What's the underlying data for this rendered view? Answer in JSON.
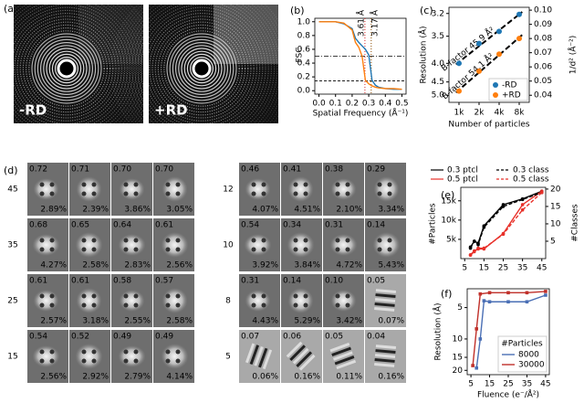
{
  "figure_a": {
    "panel_label": "(a)",
    "images": [
      "-RD",
      "+RD"
    ]
  },
  "figure_d": {
    "panel_label": "(d)",
    "grids": [
      [
        {
          "label": "45",
          "cells": [
            [
              "0.72",
              "2.89%"
            ],
            [
              "0.71",
              "2.39%"
            ],
            [
              "0.70",
              "3.86%"
            ],
            [
              "0.70",
              "3.05%"
            ]
          ]
        },
        {
          "label": "35",
          "cells": [
            [
              "0.68",
              "4.27%"
            ],
            [
              "0.65",
              "2.58%"
            ],
            [
              "0.64",
              "2.83%"
            ],
            [
              "0.61",
              "2.56%"
            ]
          ]
        },
        {
          "label": "25",
          "cells": [
            [
              "0.61",
              "2.57%"
            ],
            [
              "0.61",
              "3.18%"
            ],
            [
              "0.58",
              "2.55%"
            ],
            [
              "0.57",
              "2.58%"
            ]
          ]
        },
        {
          "label": "15",
          "cells": [
            [
              "0.54",
              "2.56%"
            ],
            [
              "0.52",
              "2.92%"
            ],
            [
              "0.49",
              "2.79%"
            ],
            [
              "0.49",
              "4.14%"
            ]
          ]
        }
      ],
      [
        {
          "label": "12",
          "cells": [
            [
              "0.46",
              "4.07%"
            ],
            [
              "0.41",
              "4.51%"
            ],
            [
              "0.38",
              "2.10%"
            ],
            [
              "0.29",
              "3.34%"
            ]
          ]
        },
        {
          "label": "10",
          "cells": [
            [
              "0.54",
              "3.92%"
            ],
            [
              "0.34",
              "3.84%"
            ],
            [
              "0.31",
              "4.72%"
            ],
            [
              "0.14",
              "5.43%"
            ]
          ]
        },
        {
          "label": "8",
          "cells": [
            [
              "0.31",
              "4.43%"
            ],
            [
              "0.14",
              "5.29%"
            ],
            [
              "0.10",
              "3.42%"
            ],
            [
              "0.05",
              "0.07%"
            ]
          ]
        },
        {
          "label": "5",
          "cells": [
            [
              "0.07",
              "0.06%"
            ],
            [
              "0.06",
              "0.16%"
            ],
            [
              "0.05",
              "0.11%"
            ],
            [
              "0.04",
              "0.16%"
            ]
          ]
        }
      ]
    ]
  },
  "chart_data": [
    {
      "type": "line",
      "panel_label": "(b)",
      "xlabel": "Spatial Frequency (Å⁻¹)",
      "ylabel": "FSC",
      "x": [
        0,
        0.05,
        0.1,
        0.15,
        0.2,
        0.22,
        0.24,
        0.26,
        0.28,
        0.3,
        0.32,
        0.34,
        0.36,
        0.4,
        0.45,
        0.5
      ],
      "series": [
        {
          "name": "-RD",
          "color": "#1f77b4",
          "values": [
            1,
            1,
            1,
            0.97,
            0.9,
            0.76,
            0.7,
            0.65,
            0.6,
            0.52,
            0.15,
            0.08,
            0.05,
            0.03,
            0.02,
            0.02
          ]
        },
        {
          "name": "+RD",
          "color": "#ff7f0e",
          "values": [
            1,
            1,
            1,
            0.98,
            0.88,
            0.7,
            0.63,
            0.5,
            0.15,
            0.1,
            0.07,
            0.05,
            0.04,
            0.03,
            0.03,
            0.02
          ]
        }
      ],
      "thresholds": [
        {
          "y": 0.5,
          "style": "dashdot"
        },
        {
          "y": 0.143,
          "style": "dashed"
        }
      ],
      "cutoffs": [
        {
          "x": 0.277,
          "label": "3.61 Å",
          "color": "#d62728"
        },
        {
          "x": 0.315,
          "label": "3.17 Å",
          "color": "#8c4a00"
        }
      ],
      "xlim": [
        -0.025,
        0.525
      ],
      "ylim": [
        -0.05,
        1.05
      ],
      "xticks": [
        {
          "value": 0,
          "label": "0.0"
        },
        0.1,
        0.2,
        0.3,
        0.4,
        0.5
      ],
      "yticks": [
        {
          "value": 0,
          "label": "0.0"
        },
        0.2,
        0.4,
        0.6,
        0.8,
        {
          "value": 1,
          "label": "1.0"
        }
      ]
    },
    {
      "type": "scatter",
      "panel_label": "(c)",
      "xlabel": "Number of particles",
      "ylabel": "Resolution (Å)",
      "y2label": "1/d² (Å⁻²)",
      "categories": [
        "1k",
        "2k",
        "4k",
        "8k"
      ],
      "series": [
        {
          "name": "-RD",
          "color": "#1f77b4",
          "axis": "y2",
          "values": [
            0.0625,
            0.0765,
            0.085,
            0.097
          ],
          "fit_label": "B-factor 45.9 Å²"
        },
        {
          "name": "+RD",
          "color": "#ff7f0e",
          "axis": "y2",
          "values": [
            0.043,
            0.057,
            0.069,
            0.08
          ],
          "fit_label": "B-factor 54.1 Å²"
        }
      ],
      "yscale": "inverse_square",
      "ylim": [
        5.345,
        3.131
      ],
      "yticks": [
        3.2,
        3.5,
        {
          "value": 4,
          "label": "4.0"
        },
        4.5,
        {
          "value": 5,
          "label": "5.0"
        }
      ],
      "y2lim": [
        0.035,
        0.102
      ],
      "y2ticks": [
        0.04,
        0.05,
        0.06,
        0.07,
        0.08,
        0.09,
        {
          "value": 0.1,
          "label": "0.10"
        }
      ],
      "legend": "lower right"
    },
    {
      "type": "line",
      "panel_label": "(e)",
      "ylabel": "#Particles",
      "y2label": "#Classes",
      "x": [
        8,
        10,
        12,
        15,
        25,
        35,
        45
      ],
      "series": [
        {
          "name": "0.3 ptcl",
          "color": "#000000",
          "values": [
            3000,
            4500,
            4000,
            8500,
            14000,
            15500,
            17500
          ]
        },
        {
          "name": "0.5 ptcl",
          "color": "#e8312a",
          "values": [
            1000,
            2000,
            2500,
            2500,
            6500,
            14000,
            17500
          ]
        },
        {
          "name": "0.3 class",
          "color": "#000000",
          "dash": true,
          "axis": "y2",
          "values": [
            3,
            5,
            4,
            9,
            15,
            17,
            19
          ]
        },
        {
          "name": "0.5 class",
          "color": "#e8312a",
          "dash": true,
          "axis": "y2",
          "values": [
            1,
            2,
            3,
            3,
            7,
            14,
            19
          ]
        }
      ],
      "xlim": [
        3,
        47
      ],
      "xticks": [
        5,
        15,
        25,
        35,
        45
      ],
      "ylim": [
        0,
        18500
      ],
      "yticks": [
        {
          "value": 5000,
          "label": "5k"
        },
        {
          "value": 10000,
          "label": "10k"
        },
        {
          "value": 15000,
          "label": "15k"
        }
      ],
      "y2lim": [
        0,
        20.5
      ],
      "y2ticks": [
        5,
        10,
        15,
        20
      ],
      "legend": "top"
    },
    {
      "type": "line",
      "panel_label": "(f)",
      "xlabel": "Fluence (e⁻/Å²)",
      "ylabel": "Resolution (Å)",
      "legend_title": "#Particles",
      "series": [
        {
          "name": "8000",
          "color": "#4a6fb5",
          "x": [
            8,
            10,
            12,
            15,
            25,
            35,
            45
          ],
          "values": [
            19,
            10,
            4.3,
            4.4,
            4.4,
            4.4,
            3.8
          ]
        },
        {
          "name": "30000",
          "color": "#c0302a",
          "x": [
            6,
            8,
            10,
            15,
            25,
            35,
            45
          ],
          "values": [
            18,
            8,
            3.7,
            3.6,
            3.6,
            3.6,
            3.5
          ]
        }
      ],
      "xlim": [
        3,
        47
      ],
      "xticks": [
        5,
        15,
        25,
        35,
        45
      ],
      "ylog": true,
      "ylim": [
        22,
        3.3
      ],
      "yticks": [
        5,
        10,
        15,
        20
      ],
      "legend": "lower right"
    }
  ]
}
